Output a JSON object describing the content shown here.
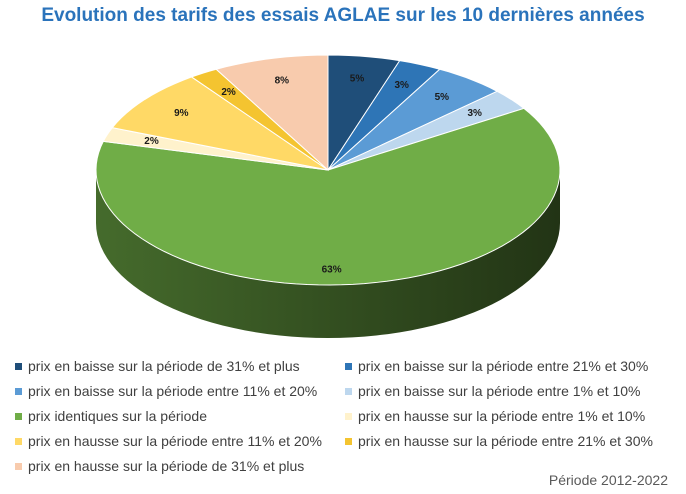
{
  "chart_data": {
    "type": "pie",
    "title": "Evolution des tarifs des essais AGLAE sur les 10 dernières années",
    "categories": [
      "prix en baisse sur la période de 31% et plus",
      "prix en baisse sur la période entre 21% et 30%",
      "prix en baisse sur la période entre 11% et 20%",
      "prix en baisse sur la période entre 1% et 10%",
      "prix identiques sur la période",
      "prix en hausse sur la période entre 1% et 10%",
      "prix en hausse sur la période entre 11% et 20%",
      "prix en hausse sur la période entre 21% et 30%",
      "prix en hausse sur la période de 31% et plus"
    ],
    "values": [
      5,
      3,
      5,
      3,
      63,
      2,
      9,
      2,
      8
    ],
    "data_labels": [
      "5%",
      "3%",
      "5%",
      "3%",
      "63%",
      "2%",
      "9%",
      "2%",
      "8%"
    ],
    "colors": [
      "#1f4e79",
      "#2e75b6",
      "#5b9bd5",
      "#bdd7ee",
      "#70ad47",
      "#fff2cc",
      "#ffd966",
      "#f4c430",
      "#f8cbad"
    ],
    "legend_position": "bottom",
    "style": "3d"
  },
  "footer": {
    "note": "Période 2012-2022"
  }
}
